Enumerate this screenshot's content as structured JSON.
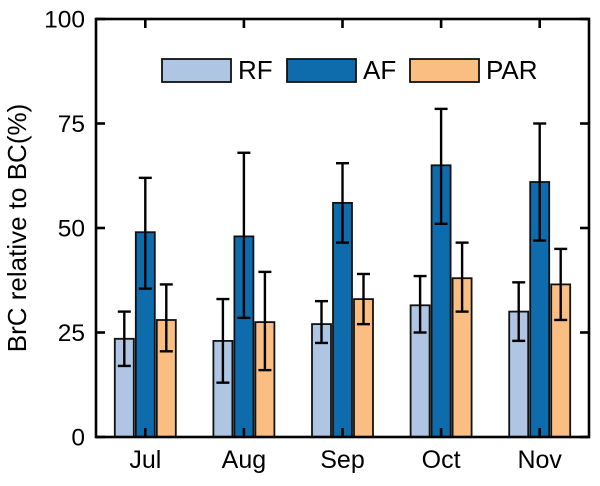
{
  "chart_data": {
    "type": "bar",
    "title": "",
    "xlabel": "",
    "ylabel": "BrC relative to BC(%)",
    "ylim": [
      0,
      100
    ],
    "yticks": [
      0,
      25,
      50,
      75,
      100
    ],
    "ytick_labels": [
      "0",
      "25",
      "50",
      "75",
      "100"
    ],
    "categories": [
      "Jul",
      "Aug",
      "Sep",
      "Oct",
      "Nov"
    ],
    "series": [
      {
        "name": "RF",
        "color": "#aec5e3",
        "values": [
          23.5,
          23,
          27,
          31.5,
          30
        ],
        "err_low": [
          17,
          13,
          22.5,
          25,
          23
        ],
        "err_high": [
          30,
          33,
          32.5,
          38.5,
          37
        ]
      },
      {
        "name": "AF",
        "color": "#0e6cad",
        "values": [
          49,
          48,
          56,
          65,
          61
        ],
        "err_low": [
          35.5,
          28.5,
          46.5,
          51,
          47
        ],
        "err_high": [
          62,
          68,
          65.5,
          78.5,
          75
        ]
      },
      {
        "name": "PAR",
        "color": "#fbbe82",
        "values": [
          28,
          27.5,
          33,
          38,
          36.5
        ],
        "err_low": [
          20.5,
          16,
          27,
          30,
          28
        ],
        "err_high": [
          36.5,
          39.5,
          39,
          46.5,
          45
        ]
      }
    ],
    "legend": {
      "position": "top-inside",
      "labels": [
        "RF",
        "AF",
        "PAR"
      ]
    },
    "grid": false,
    "colors": {
      "axis": "#000000",
      "errorbar": "#000000",
      "bar_edge": "#111111",
      "background": "#ffffff",
      "text": "#000000"
    }
  }
}
